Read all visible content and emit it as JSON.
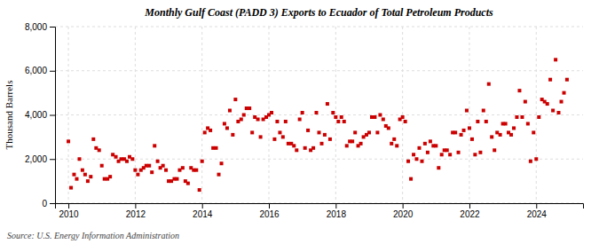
{
  "chart_data": {
    "type": "scatter",
    "title": "Monthly Gulf Coast (PADD 3) Exports to Ecuador of Total Petroleum Products",
    "y_label": "Thousand Barrels",
    "source": "Source: U.S. Energy Information Administration",
    "color": "#cc0000",
    "marker": "square",
    "grid": true,
    "xlim": [
      2009.6,
      2025.4
    ],
    "xticks": [
      2010,
      2012,
      2014,
      2016,
      2018,
      2020,
      2022,
      2024
    ],
    "ylim": [
      0,
      8000
    ],
    "yticks": [
      0,
      {
        "value": 2000,
        "label": "2,000"
      },
      {
        "value": 4000,
        "label": "4,000"
      },
      {
        "value": 6000,
        "label": "6,000"
      },
      {
        "value": 8000,
        "label": "8,000"
      }
    ],
    "x": [
      2010.0,
      2010.08,
      2010.17,
      2010.25,
      2010.33,
      2010.42,
      2010.5,
      2010.58,
      2010.67,
      2010.75,
      2010.83,
      2010.92,
      2011.0,
      2011.08,
      2011.17,
      2011.25,
      2011.33,
      2011.42,
      2011.5,
      2011.58,
      2011.67,
      2011.75,
      2011.83,
      2011.92,
      2012.0,
      2012.08,
      2012.17,
      2012.25,
      2012.33,
      2012.42,
      2012.5,
      2012.58,
      2012.67,
      2012.75,
      2012.83,
      2012.92,
      2013.0,
      2013.08,
      2013.17,
      2013.25,
      2013.33,
      2013.42,
      2013.5,
      2013.58,
      2013.67,
      2013.75,
      2013.83,
      2013.92,
      2014.0,
      2014.08,
      2014.17,
      2014.25,
      2014.33,
      2014.42,
      2014.5,
      2014.58,
      2014.67,
      2014.75,
      2014.83,
      2014.92,
      2015.0,
      2015.08,
      2015.17,
      2015.25,
      2015.33,
      2015.42,
      2015.5,
      2015.58,
      2015.67,
      2015.75,
      2015.83,
      2015.92,
      2016.0,
      2016.08,
      2016.17,
      2016.25,
      2016.33,
      2016.42,
      2016.5,
      2016.58,
      2016.67,
      2016.75,
      2016.83,
      2016.92,
      2017.0,
      2017.08,
      2017.17,
      2017.25,
      2017.33,
      2017.42,
      2017.5,
      2017.58,
      2017.67,
      2017.75,
      2017.83,
      2017.92,
      2018.0,
      2018.08,
      2018.17,
      2018.25,
      2018.33,
      2018.42,
      2018.5,
      2018.58,
      2018.67,
      2018.75,
      2018.83,
      2018.92,
      2019.0,
      2019.08,
      2019.17,
      2019.25,
      2019.33,
      2019.42,
      2019.5,
      2019.58,
      2019.67,
      2019.75,
      2019.83,
      2019.92,
      2020.0,
      2020.08,
      2020.17,
      2020.25,
      2020.33,
      2020.42,
      2020.5,
      2020.58,
      2020.67,
      2020.75,
      2020.83,
      2020.92,
      2021.0,
      2021.08,
      2021.17,
      2021.25,
      2021.33,
      2021.42,
      2021.5,
      2021.58,
      2021.67,
      2021.75,
      2021.83,
      2021.92,
      2022.0,
      2022.08,
      2022.17,
      2022.25,
      2022.33,
      2022.42,
      2022.5,
      2022.58,
      2022.67,
      2022.75,
      2022.83,
      2022.92,
      2023.0,
      2023.08,
      2023.17,
      2023.25,
      2023.33,
      2023.42,
      2023.5,
      2023.58,
      2023.67,
      2023.75,
      2023.83,
      2023.92,
      2024.0,
      2024.08,
      2024.17,
      2024.25,
      2024.33,
      2024.42,
      2024.5,
      2024.58,
      2024.67,
      2024.75,
      2024.83,
      2024.92
    ],
    "values": [
      2800,
      700,
      1300,
      1100,
      2000,
      1500,
      1300,
      1000,
      1200,
      2900,
      2500,
      2400,
      1700,
      1100,
      1100,
      1200,
      2200,
      2100,
      1900,
      2000,
      2000,
      1900,
      2100,
      2000,
      1500,
      1300,
      1500,
      1600,
      1700,
      1700,
      1400,
      2600,
      1900,
      1600,
      1700,
      1500,
      1000,
      1000,
      1100,
      1100,
      1500,
      1600,
      1000,
      900,
      1600,
      1500,
      1500,
      600,
      1900,
      3200,
      3400,
      3300,
      2500,
      2500,
      1300,
      1800,
      3600,
      3400,
      4200,
      3100,
      4700,
      3700,
      3800,
      4000,
      4300,
      4300,
      3200,
      3900,
      3800,
      3000,
      3800,
      3900,
      4000,
      4100,
      2900,
      3700,
      3200,
      3000,
      3700,
      2700,
      2700,
      2600,
      2400,
      3800,
      4100,
      2500,
      3300,
      2400,
      2500,
      4100,
      3200,
      2700,
      3100,
      4500,
      2900,
      4100,
      3900,
      3700,
      3900,
      3700,
      2600,
      2800,
      2800,
      3200,
      2600,
      2700,
      3000,
      3100,
      3200,
      3900,
      3900,
      3200,
      4000,
      3800,
      3500,
      3400,
      2700,
      2900,
      2600,
      3800,
      3900,
      3700,
      1900,
      1100,
      2200,
      2000,
      2500,
      1900,
      2700,
      2300,
      2800,
      2600,
      2600,
      1600,
      2200,
      2400,
      2400,
      2200,
      3200,
      3200,
      2300,
      3100,
      3300,
      4200,
      3400,
      2900,
      2200,
      3700,
      2300,
      4200,
      3700,
      5400,
      3000,
      2400,
      3200,
      3100,
      3600,
      3600,
      3200,
      3100,
      3400,
      3900,
      5100,
      3900,
      4600,
      3600,
      1900,
      3200,
      2000,
      3900,
      4700,
      4600,
      4500,
      5600,
      4200,
      6500,
      4100,
      4600,
      5000,
      5600
    ]
  }
}
